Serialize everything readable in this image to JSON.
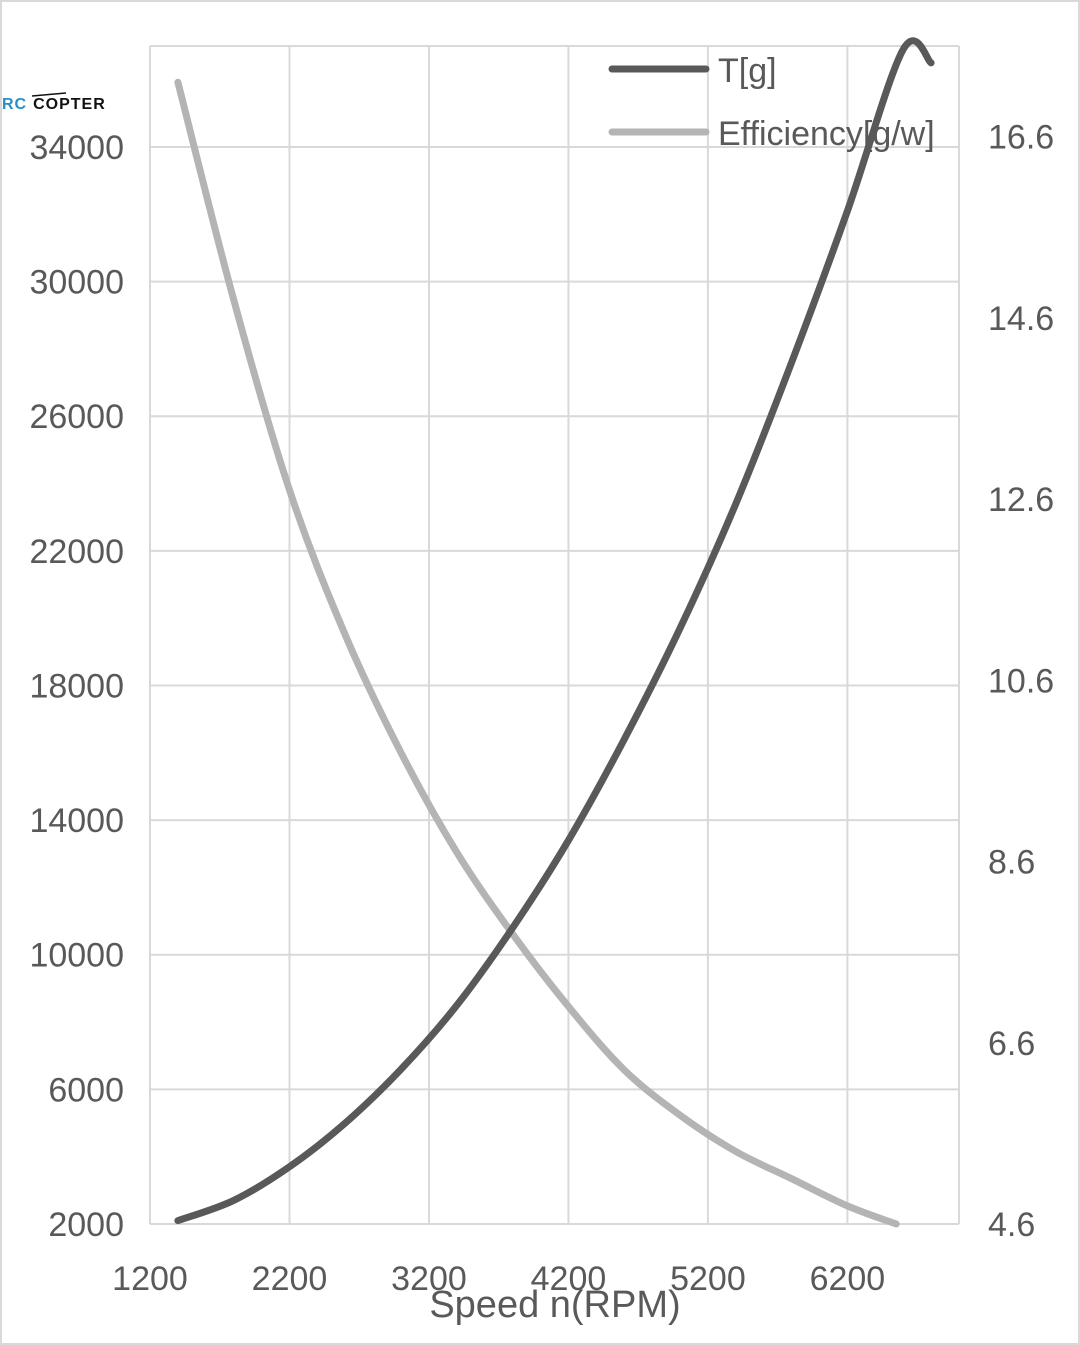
{
  "watermark": {
    "rc": "RC",
    "copter": "COPTER"
  },
  "colors": {
    "thrust_line": "#595959",
    "efficiency_line": "#b4b4b4",
    "grid": "#d9d9d9",
    "text": "#595959"
  },
  "chart_data": {
    "type": "line",
    "title": "",
    "xlabel": "Speed n(RPM)",
    "ylabel": "",
    "y2label": "",
    "xlim": [
      1200,
      7000
    ],
    "ylim": [
      2000,
      37000
    ],
    "y2lim": [
      4.6,
      17.6
    ],
    "x_ticks": [
      1200,
      2200,
      3200,
      4200,
      5200,
      6200
    ],
    "y_ticks": [
      2000,
      6000,
      10000,
      14000,
      18000,
      22000,
      26000,
      30000,
      34000
    ],
    "y2_ticks": [
      "4.6",
      "6.6",
      "8.6",
      "10.6",
      "12.6",
      "14.6",
      "16.6"
    ],
    "grid": true,
    "legend_position": "top-right",
    "series": [
      {
        "name": "T[g]",
        "axis": "left",
        "x": [
          1400,
          1800,
          2200,
          2600,
          3000,
          3400,
          3800,
          4200,
          4600,
          5000,
          5400,
          5800,
          6200,
          6600,
          6800
        ],
        "values": [
          2100,
          2700,
          3700,
          5000,
          6600,
          8500,
          10800,
          13400,
          16400,
          19700,
          23400,
          27600,
          32100,
          36900,
          36500
        ]
      },
      {
        "name": "Efficiency[g/w]",
        "axis": "right",
        "x": [
          1400,
          1800,
          2200,
          2600,
          3000,
          3400,
          3800,
          4200,
          4600,
          5000,
          5400,
          5800,
          6200,
          6550
        ],
        "values": [
          17.2,
          14.8,
          12.7,
          11.1,
          9.8,
          8.7,
          7.8,
          7.0,
          6.3,
          5.8,
          5.4,
          5.1,
          4.8,
          4.6
        ]
      }
    ]
  }
}
